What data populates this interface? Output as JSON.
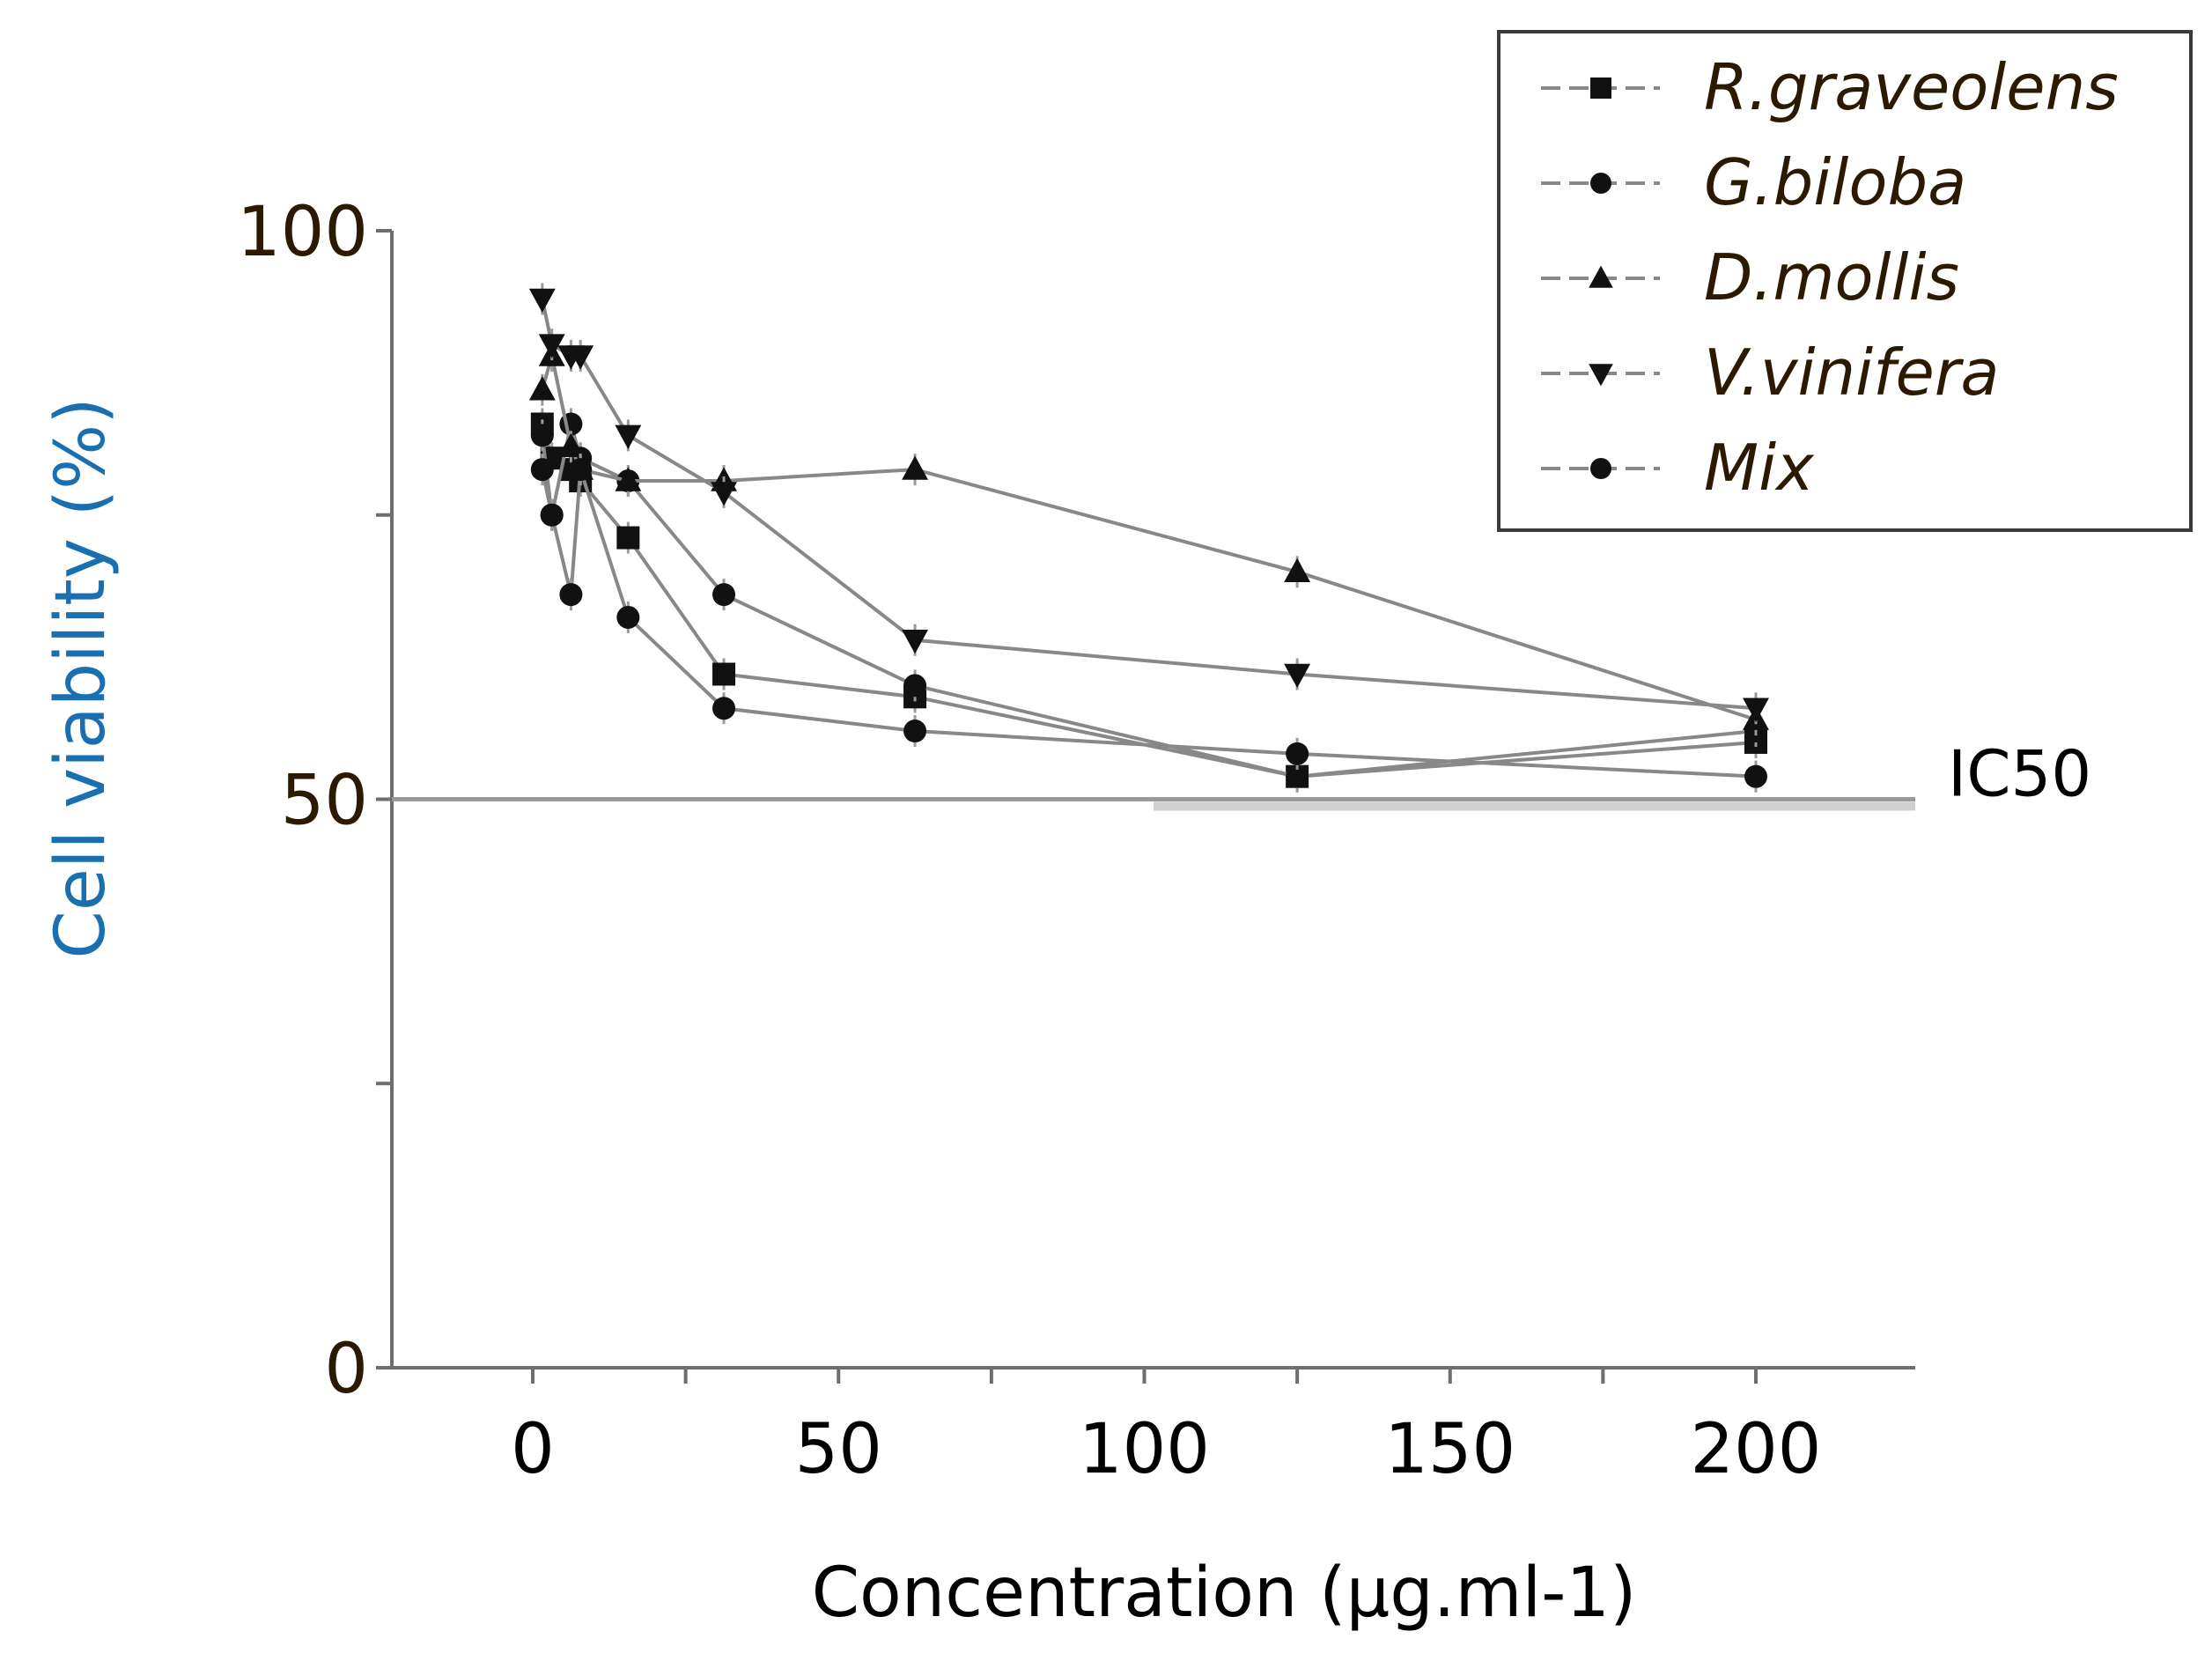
{
  "chart_data": {
    "type": "line",
    "xlabel": "Concentration (µg.ml-1)",
    "ylabel": "Cell viability (%)",
    "xlim": [
      -25,
      225
    ],
    "ylim": [
      0,
      100
    ],
    "xticks": [
      0,
      50,
      100,
      150,
      200
    ],
    "xticks_minor": [
      25,
      75,
      125,
      175
    ],
    "yticks": [
      0,
      50,
      100
    ],
    "yticks_minor": [
      25,
      75
    ],
    "reference_line": {
      "y": 50,
      "label": "IC50"
    },
    "legend_position": "top-right",
    "x": [
      1.56,
      3.125,
      6.25,
      7.8,
      15.6,
      31.25,
      62.5,
      125,
      200
    ],
    "series": [
      {
        "name": "R.graveolens",
        "marker": "square",
        "values": [
          83,
          80,
          79,
          78,
          73,
          61,
          59,
          52,
          55
        ]
      },
      {
        "name": "G.biloba",
        "marker": "circle",
        "values": [
          82,
          75,
          83,
          80,
          78,
          68,
          60,
          52,
          56
        ]
      },
      {
        "name": "D.mollis",
        "marker": "triangle-up",
        "values": [
          86,
          89,
          81,
          79,
          78,
          78,
          79,
          70,
          57
        ]
      },
      {
        "name": "V.vinifera",
        "marker": "triangle-down",
        "values": [
          94,
          90,
          89,
          89,
          82,
          77,
          64,
          61,
          58
        ]
      },
      {
        "name": "Mix",
        "marker": "circle",
        "values": [
          79,
          75,
          68,
          79,
          66,
          58,
          56,
          54,
          52
        ]
      }
    ],
    "series_color": "#888888",
    "marker_color": "#111111"
  }
}
